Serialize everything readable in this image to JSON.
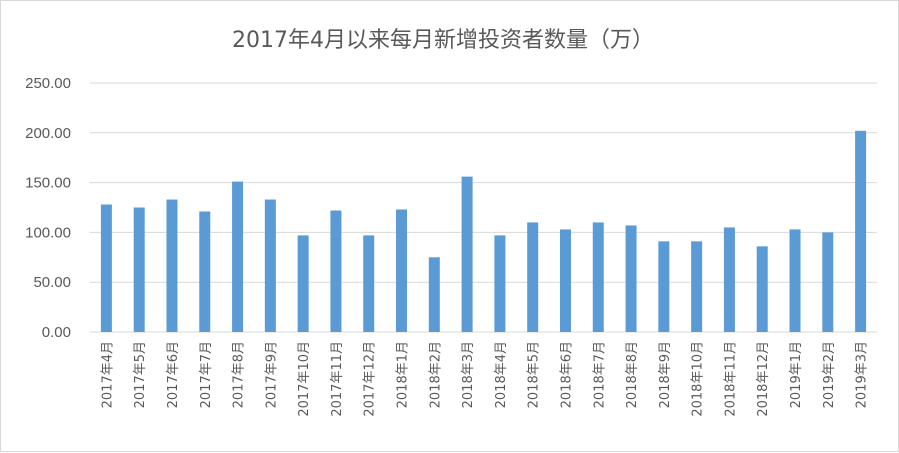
{
  "chart_data": {
    "type": "bar",
    "title": "2017年4月以来每月新增投资者数量（万）",
    "xlabel": "",
    "ylabel": "",
    "ylim": [
      0,
      250
    ],
    "yticks": [
      "0.00",
      "50.00",
      "100.00",
      "150.00",
      "200.00",
      "250.00"
    ],
    "grid": true,
    "legend": "none",
    "bar_color": "#5b9bd5",
    "categories": [
      "2017年4月",
      "2017年5月",
      "2017年6月",
      "2017年7月",
      "2017年8月",
      "2017年9月",
      "2017年10月",
      "2017年11月",
      "2017年12月",
      "2018年1月",
      "2018年2月",
      "2018年3月",
      "2018年4月",
      "2018年5月",
      "2018年6月",
      "2018年7月",
      "2018年8月",
      "2018年9月",
      "2018年10月",
      "2018年11月",
      "2018年12月",
      "2019年1月",
      "2019年2月",
      "2019年3月"
    ],
    "values": [
      128,
      125,
      133,
      121,
      151,
      133,
      97,
      122,
      97,
      123,
      75,
      156,
      97,
      110,
      103,
      110,
      107,
      91,
      91,
      105,
      86,
      103,
      100,
      202
    ]
  }
}
